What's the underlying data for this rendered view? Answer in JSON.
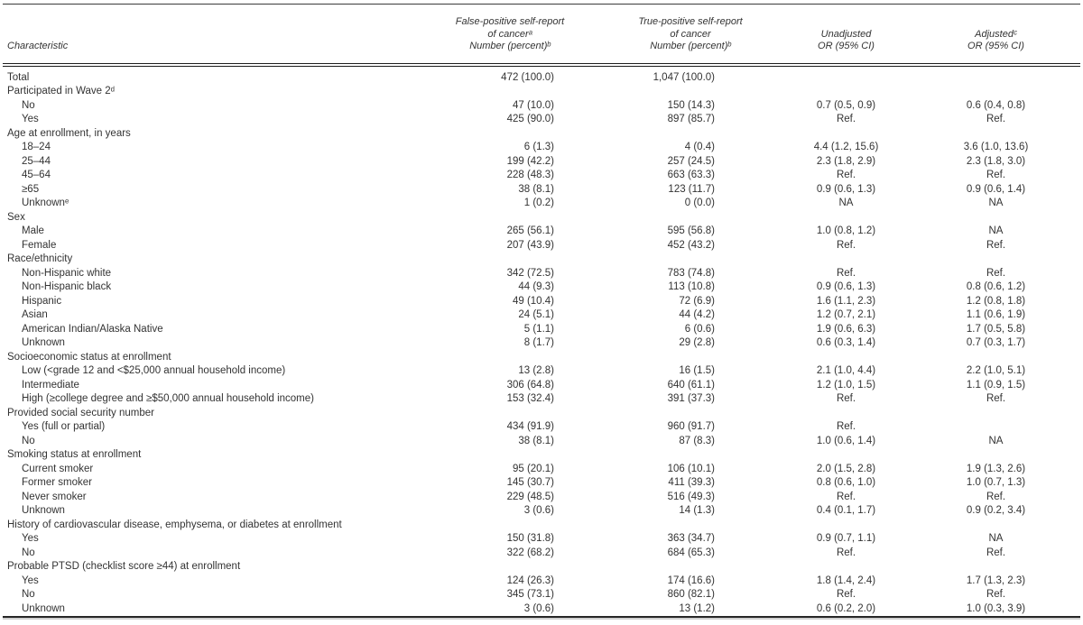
{
  "table": {
    "columns": {
      "characteristic": "Characteristic",
      "fp": [
        "False-positive self-report",
        "of cancerᵃ",
        "Number (percent)ᵇ"
      ],
      "tp": [
        "True-positive self-report",
        "of cancer",
        "Number (percent)ᵇ"
      ],
      "unadjusted": [
        "Unadjusted",
        "OR (95% CI)"
      ],
      "adjusted": [
        "Adjustedᶜ",
        "OR (95% CI)"
      ]
    },
    "rows": [
      {
        "label": "Total",
        "indent": 0,
        "fp": "472 (100.0)",
        "tp": "1,047 (100.0)",
        "uor": "",
        "aor": ""
      },
      {
        "label": "Participated in Wave 2ᵈ",
        "indent": 0,
        "fp": "",
        "tp": "",
        "uor": "",
        "aor": ""
      },
      {
        "label": "No",
        "indent": 1,
        "fp": "47 (10.0)",
        "tp": "150 (14.3)",
        "uor": "0.7 (0.5, 0.9)",
        "aor": "0.6 (0.4, 0.8)"
      },
      {
        "label": "Yes",
        "indent": 1,
        "fp": "425 (90.0)",
        "tp": "897 (85.7)",
        "uor": "Ref.",
        "aor": "Ref."
      },
      {
        "label": "Age at enrollment, in years",
        "indent": 0,
        "fp": "",
        "tp": "",
        "uor": "",
        "aor": ""
      },
      {
        "label": "18–24",
        "indent": 1,
        "fp": "6 (1.3)",
        "tp": "4 (0.4)",
        "uor": "4.4 (1.2, 15.6)",
        "aor": "3.6 (1.0, 13.6)"
      },
      {
        "label": "25–44",
        "indent": 1,
        "fp": "199 (42.2)",
        "tp": "257 (24.5)",
        "uor": "2.3 (1.8, 2.9)",
        "aor": "2.3 (1.8, 3.0)"
      },
      {
        "label": "45–64",
        "indent": 1,
        "fp": "228 (48.3)",
        "tp": "663 (63.3)",
        "uor": "Ref.",
        "aor": "Ref."
      },
      {
        "label": "≥65",
        "indent": 1,
        "fp": "38 (8.1)",
        "tp": "123 (11.7)",
        "uor": "0.9 (0.6, 1.3)",
        "aor": "0.9 (0.6, 1.4)"
      },
      {
        "label": "Unknownᵉ",
        "indent": 1,
        "fp": "1 (0.2)",
        "tp": "0 (0.0)",
        "uor": "NA",
        "aor": "NA"
      },
      {
        "label": "Sex",
        "indent": 0,
        "fp": "",
        "tp": "",
        "uor": "",
        "aor": ""
      },
      {
        "label": "Male",
        "indent": 1,
        "fp": "265 (56.1)",
        "tp": "595 (56.8)",
        "uor": "1.0 (0.8, 1.2)",
        "aor": "NA"
      },
      {
        "label": "Female",
        "indent": 1,
        "fp": "207 (43.9)",
        "tp": "452 (43.2)",
        "uor": "Ref.",
        "aor": "Ref."
      },
      {
        "label": "Race/ethnicity",
        "indent": 0,
        "fp": "",
        "tp": "",
        "uor": "",
        "aor": ""
      },
      {
        "label": "Non-Hispanic white",
        "indent": 1,
        "fp": "342 (72.5)",
        "tp": "783 (74.8)",
        "uor": "Ref.",
        "aor": "Ref."
      },
      {
        "label": "Non-Hispanic black",
        "indent": 1,
        "fp": "44 (9.3)",
        "tp": "113 (10.8)",
        "uor": "0.9 (0.6, 1.3)",
        "aor": "0.8 (0.6, 1.2)"
      },
      {
        "label": "Hispanic",
        "indent": 1,
        "fp": "49 (10.4)",
        "tp": "72 (6.9)",
        "uor": "1.6 (1.1, 2.3)",
        "aor": "1.2 (0.8, 1.8)"
      },
      {
        "label": "Asian",
        "indent": 1,
        "fp": "24 (5.1)",
        "tp": "44 (4.2)",
        "uor": "1.2 (0.7, 2.1)",
        "aor": "1.1 (0.6, 1.9)"
      },
      {
        "label": "American Indian/Alaska Native",
        "indent": 1,
        "fp": "5 (1.1)",
        "tp": "6 (0.6)",
        "uor": "1.9 (0.6, 6.3)",
        "aor": "1.7 (0.5, 5.8)"
      },
      {
        "label": "Unknown",
        "indent": 1,
        "fp": "8 (1.7)",
        "tp": "29 (2.8)",
        "uor": "0.6 (0.3, 1.4)",
        "aor": "0.7 (0.3, 1.7)"
      },
      {
        "label": "Socioeconomic status at enrollment",
        "indent": 0,
        "fp": "",
        "tp": "",
        "uor": "",
        "aor": ""
      },
      {
        "label": "Low (<grade 12 and <$25,000 annual household income)",
        "indent": 1,
        "fp": "13 (2.8)",
        "tp": "16 (1.5)",
        "uor": "2.1 (1.0, 4.4)",
        "aor": "2.2 (1.0, 5.1)"
      },
      {
        "label": "Intermediate",
        "indent": 1,
        "fp": "306 (64.8)",
        "tp": "640 (61.1)",
        "uor": "1.2 (1.0, 1.5)",
        "aor": "1.1 (0.9, 1.5)"
      },
      {
        "label": "High (≥college degree and ≥$50,000 annual household income)",
        "indent": 1,
        "fp": "153 (32.4)",
        "tp": "391 (37.3)",
        "uor": "Ref.",
        "aor": "Ref."
      },
      {
        "label": "Provided social security number",
        "indent": 0,
        "fp": "",
        "tp": "",
        "uor": "",
        "aor": ""
      },
      {
        "label": "Yes (full or partial)",
        "indent": 1,
        "fp": "434 (91.9)",
        "tp": "960 (91.7)",
        "uor": "Ref.",
        "aor": ""
      },
      {
        "label": "No",
        "indent": 1,
        "fp": "38 (8.1)",
        "tp": "87 (8.3)",
        "uor": "1.0 (0.6, 1.4)",
        "aor": "NA"
      },
      {
        "label": "Smoking status at enrollment",
        "indent": 0,
        "fp": "",
        "tp": "",
        "uor": "",
        "aor": ""
      },
      {
        "label": "Current smoker",
        "indent": 1,
        "fp": "95 (20.1)",
        "tp": "106 (10.1)",
        "uor": "2.0 (1.5, 2.8)",
        "aor": "1.9 (1.3, 2.6)"
      },
      {
        "label": "Former smoker",
        "indent": 1,
        "fp": "145 (30.7)",
        "tp": "411 (39.3)",
        "uor": "0.8 (0.6, 1.0)",
        "aor": "1.0 (0.7, 1.3)"
      },
      {
        "label": "Never smoker",
        "indent": 1,
        "fp": "229 (48.5)",
        "tp": "516 (49.3)",
        "uor": "Ref.",
        "aor": "Ref."
      },
      {
        "label": "Unknown",
        "indent": 1,
        "fp": "3 (0.6)",
        "tp": "14 (1.3)",
        "uor": "0.4 (0.1, 1.7)",
        "aor": "0.9 (0.2, 3.4)"
      },
      {
        "label": "History of cardiovascular disease, emphysema, or diabetes at enrollment",
        "indent": 0,
        "fp": "",
        "tp": "",
        "uor": "",
        "aor": ""
      },
      {
        "label": "Yes",
        "indent": 1,
        "fp": "150 (31.8)",
        "tp": "363 (34.7)",
        "uor": "0.9 (0.7, 1.1)",
        "aor": "NA"
      },
      {
        "label": "No",
        "indent": 1,
        "fp": "322 (68.2)",
        "tp": "684 (65.3)",
        "uor": "Ref.",
        "aor": "Ref."
      },
      {
        "label": "Probable PTSD (checklist score ≥44) at enrollment",
        "indent": 0,
        "fp": "",
        "tp": "",
        "uor": "",
        "aor": ""
      },
      {
        "label": "Yes",
        "indent": 1,
        "fp": "124 (26.3)",
        "tp": "174 (16.6)",
        "uor": "1.8 (1.4, 2.4)",
        "aor": "1.7 (1.3, 2.3)"
      },
      {
        "label": "No",
        "indent": 1,
        "fp": "345 (73.1)",
        "tp": "860 (82.1)",
        "uor": "Ref.",
        "aor": "Ref."
      },
      {
        "label": "Unknown",
        "indent": 1,
        "fp": "3 (0.6)",
        "tp": "13 (1.2)",
        "uor": "0.6 (0.2, 2.0)",
        "aor": "1.0 (0.3, 3.9)"
      }
    ]
  }
}
